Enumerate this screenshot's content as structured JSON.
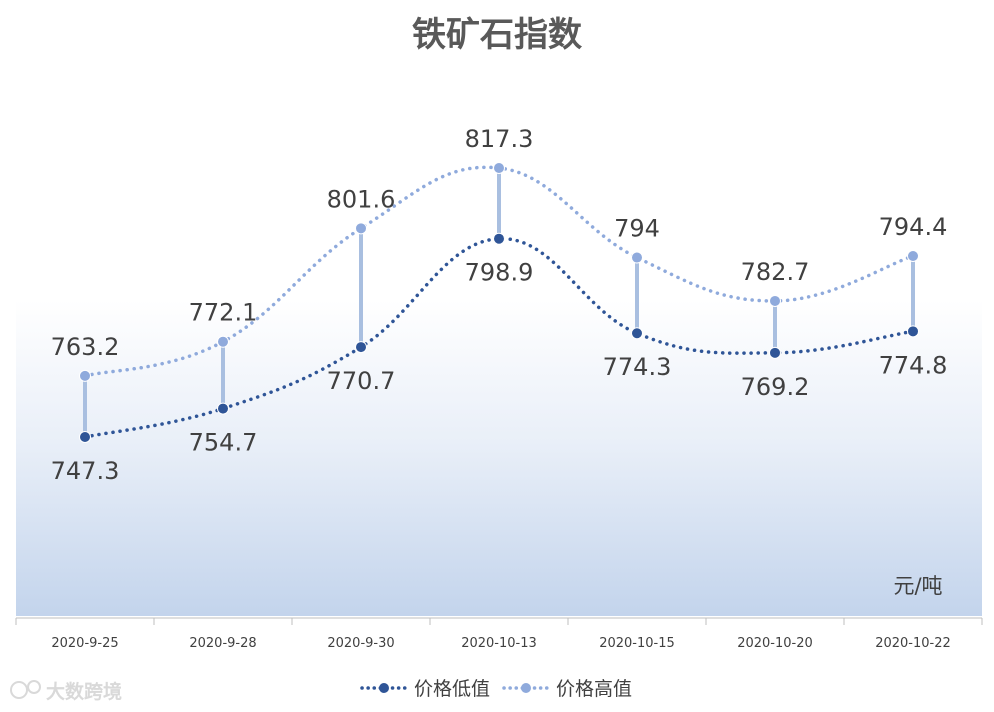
{
  "chart_data": {
    "type": "line",
    "title": "铁矿石指数",
    "unit": "元/吨",
    "categories": [
      "2020-9-25",
      "2020-9-28",
      "2020-9-30",
      "2020-10-13",
      "2020-10-15",
      "2020-10-20",
      "2020-10-22"
    ],
    "series": [
      {
        "name": "价格低值",
        "values": [
          747.3,
          754.7,
          770.7,
          798.9,
          774.3,
          769.2,
          774.8
        ],
        "color": "#2f5597",
        "label_position": "below"
      },
      {
        "name": "价格高值",
        "values": [
          763.2,
          772.1,
          801.6,
          817.3,
          794,
          782.7,
          794.4
        ],
        "color": "#8faadc",
        "label_position": "above"
      }
    ],
    "high_low_lines": true,
    "line_style": "dotted",
    "smooth": true,
    "legend_position": "bottom",
    "watermark": "大数跨境"
  }
}
